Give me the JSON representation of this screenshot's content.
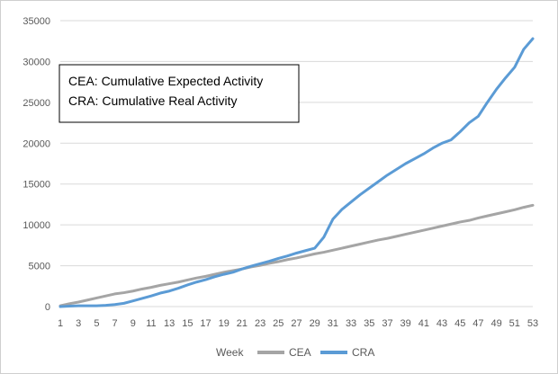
{
  "chart_data": {
    "type": "line",
    "title": "",
    "xlabel": "Week",
    "ylabel": "",
    "ylim": [
      0,
      35000
    ],
    "yticks": [
      0,
      5000,
      10000,
      15000,
      20000,
      25000,
      30000,
      35000
    ],
    "xticks": [
      1,
      3,
      5,
      7,
      9,
      11,
      13,
      15,
      17,
      19,
      21,
      23,
      25,
      27,
      29,
      31,
      33,
      35,
      37,
      39,
      41,
      43,
      45,
      47,
      49,
      51,
      53
    ],
    "grid": "horizontal",
    "legend_position": "bottom",
    "x": [
      1,
      2,
      3,
      4,
      5,
      6,
      7,
      8,
      9,
      10,
      11,
      12,
      13,
      14,
      15,
      16,
      17,
      18,
      19,
      20,
      21,
      22,
      23,
      24,
      25,
      26,
      27,
      28,
      29,
      30,
      31,
      32,
      33,
      34,
      35,
      36,
      37,
      38,
      39,
      40,
      41,
      42,
      43,
      44,
      45,
      46,
      47,
      48,
      49,
      50,
      51,
      52,
      53
    ],
    "series": [
      {
        "name": "CEA",
        "color": "#a5a5a5",
        "values": [
          100,
          350,
          550,
          800,
          1050,
          1300,
          1550,
          1700,
          1900,
          2150,
          2350,
          2600,
          2800,
          3000,
          3250,
          3500,
          3700,
          3950,
          4200,
          4400,
          4600,
          4850,
          5050,
          5300,
          5500,
          5750,
          5950,
          6200,
          6450,
          6650,
          6900,
          7150,
          7400,
          7650,
          7900,
          8150,
          8350,
          8600,
          8850,
          9100,
          9350,
          9600,
          9850,
          10100,
          10350,
          10550,
          10850,
          11100,
          11350,
          11600,
          11850,
          12150,
          12400
        ]
      },
      {
        "name": "CRA",
        "color": "#5b9bd5",
        "values": [
          0,
          50,
          100,
          100,
          100,
          150,
          250,
          400,
          700,
          1000,
          1300,
          1650,
          1900,
          2250,
          2650,
          3000,
          3300,
          3650,
          3950,
          4200,
          4600,
          4950,
          5250,
          5550,
          5900,
          6200,
          6550,
          6850,
          7150,
          8500,
          10700,
          11900,
          12800,
          13700,
          14500,
          15300,
          16100,
          16800,
          17500,
          18100,
          18700,
          19400,
          20000,
          20400,
          21400,
          22500,
          23300,
          25000,
          26600,
          28000,
          29300,
          31500,
          32800
        ]
      }
    ]
  },
  "annotation": {
    "line1": "CEA: Cumulative Expected Activity",
    "line2": "CRA: Cumulative Real Activity"
  }
}
